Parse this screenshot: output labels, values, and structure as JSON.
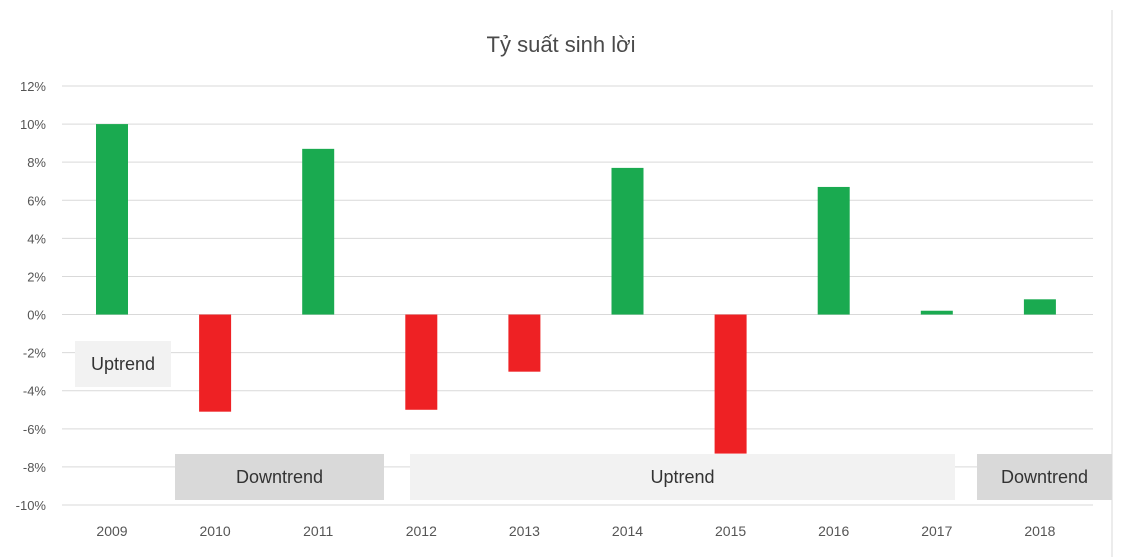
{
  "chart_data": {
    "type": "bar",
    "title": "Tỷ suất sinh lời",
    "xlabel": "",
    "ylabel": "",
    "categories": [
      "2009",
      "2010",
      "2011",
      "2012",
      "2013",
      "2014",
      "2015",
      "2016",
      "2017",
      "2018"
    ],
    "values": [
      10.0,
      -5.1,
      8.7,
      -5.0,
      -3.0,
      7.7,
      -7.3,
      6.7,
      0.2,
      0.8
    ],
    "ylim": [
      -10,
      12
    ],
    "y_ticks": [
      "12%",
      "10%",
      "8%",
      "6%",
      "4%",
      "2%",
      "0%",
      "-2%",
      "-4%",
      "-6%",
      "-8%",
      "-10%"
    ],
    "grid": true,
    "colors": {
      "positive": "#1aaa50",
      "negative": "#ee2124"
    },
    "annotations": [
      {
        "text": "Uptrend",
        "from": "2009",
        "to": "2009",
        "shade": "#f2f2f2"
      },
      {
        "text": "Downtrend",
        "from": "2010",
        "to": "2011",
        "shade": "#d9d9d9"
      },
      {
        "text": "Uptrend",
        "from": "2012",
        "to": "2017",
        "shade": "#f2f2f2"
      },
      {
        "text": "Downtrend",
        "from": "2018",
        "to": "2018",
        "shade": "#d9d9d9"
      }
    ]
  }
}
